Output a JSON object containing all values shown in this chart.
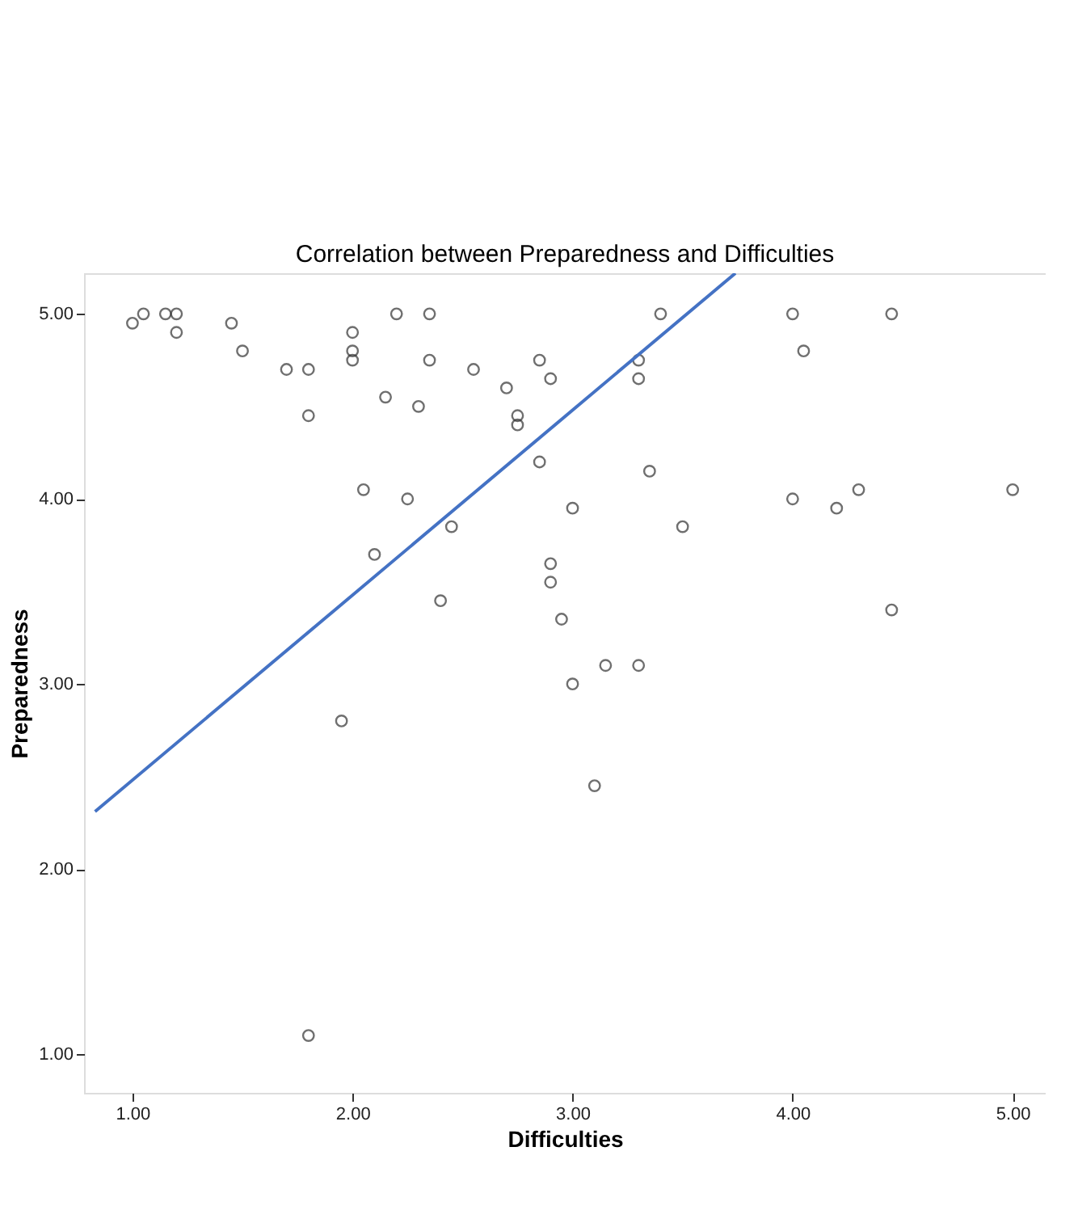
{
  "chart_data": {
    "type": "scatter",
    "title": "Correlation between Preparedness and Difficulties",
    "xlabel": "Difficulties",
    "ylabel": "Preparedness",
    "grid": false,
    "xlim": [
      0.78,
      5.15
    ],
    "ylim": [
      0.79,
      5.22
    ],
    "xticks": [
      {
        "value": 1,
        "label": "1.00"
      },
      {
        "value": 2,
        "label": "2.00"
      },
      {
        "value": 3,
        "label": "3.00"
      },
      {
        "value": 4,
        "label": "4.00"
      },
      {
        "value": 5,
        "label": "5.00"
      }
    ],
    "yticks": [
      {
        "value": 1,
        "label": "1.00"
      },
      {
        "value": 2,
        "label": "2.00"
      },
      {
        "value": 3,
        "label": "3.00"
      },
      {
        "value": 4,
        "label": "4.00"
      },
      {
        "value": 5,
        "label": "5.00"
      }
    ],
    "series": [
      {
        "marker": "circle",
        "color": "#333333",
        "x": [
          1.0,
          1.05,
          1.15,
          1.2,
          1.2,
          1.45,
          1.5,
          1.7,
          1.8,
          1.8,
          2.0,
          2.0,
          2.0,
          2.2,
          2.35,
          2.15,
          2.3,
          2.35,
          2.55,
          2.7,
          2.75,
          2.75,
          2.85,
          2.9,
          2.85,
          2.05,
          2.25,
          2.1,
          2.45,
          2.4,
          3.0,
          2.9,
          2.9,
          2.95,
          3.0,
          3.15,
          3.3,
          3.1,
          1.95,
          1.8,
          3.4,
          3.3,
          3.3,
          3.35,
          3.5,
          4.0,
          4.45,
          4.05,
          4.0,
          4.2,
          4.3,
          4.45,
          5.0
        ],
        "values": [
          4.95,
          5.0,
          5.0,
          5.0,
          4.9,
          4.95,
          4.8,
          4.7,
          4.7,
          4.45,
          4.9,
          4.8,
          4.75,
          5.0,
          5.0,
          4.55,
          4.5,
          4.75,
          4.7,
          4.6,
          4.45,
          4.4,
          4.75,
          4.65,
          4.2,
          4.05,
          4.0,
          3.7,
          3.85,
          3.45,
          3.95,
          3.65,
          3.55,
          3.35,
          3.0,
          3.1,
          3.1,
          2.45,
          2.8,
          1.1,
          5.0,
          4.75,
          4.65,
          4.15,
          3.85,
          5.0,
          5.0,
          4.8,
          4.0,
          3.95,
          4.05,
          3.4,
          4.05
        ]
      },
      {
        "type": "line",
        "color": "#4472c4",
        "x": [
          0.83,
          3.74
        ],
        "values": [
          2.31,
          5.22
        ]
      }
    ]
  }
}
